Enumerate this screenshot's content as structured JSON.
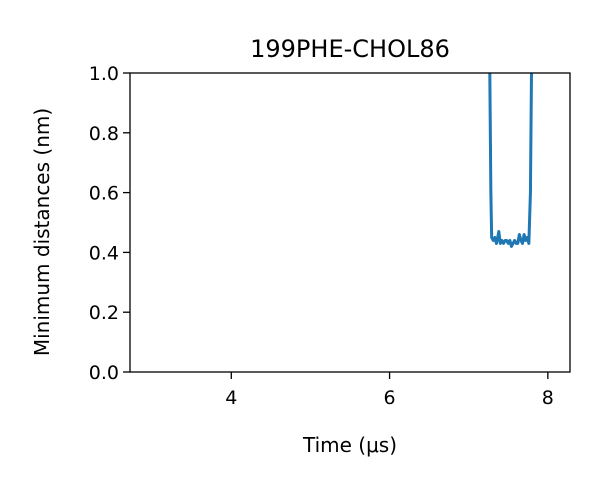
{
  "chart_data": {
    "type": "line",
    "title": "199PHE-CHOL86",
    "xlabel": "Time (μs)",
    "ylabel": "Minimum distances (nm)",
    "xlim": [
      2.72,
      8.28
    ],
    "ylim": [
      0.0,
      1.0
    ],
    "xticks": [
      4,
      6,
      8
    ],
    "yticks": [
      0.0,
      0.2,
      0.4,
      0.6,
      0.8,
      1.0
    ],
    "xtick_labels": [
      "4",
      "6",
      "8"
    ],
    "ytick_labels": [
      "0.0",
      "0.2",
      "0.4",
      "0.6",
      "0.8",
      "1.0"
    ],
    "grid": false,
    "legend": false,
    "series": [
      {
        "color": "#1f77b4",
        "x": [
          7.26,
          7.28,
          7.29,
          7.31,
          7.33,
          7.35,
          7.36,
          7.38,
          7.4,
          7.42,
          7.44,
          7.46,
          7.48,
          7.5,
          7.52,
          7.54,
          7.56,
          7.58,
          7.6,
          7.62,
          7.64,
          7.66,
          7.68,
          7.7,
          7.72,
          7.74,
          7.76,
          7.78,
          7.8
        ],
        "y": [
          1.2,
          0.6,
          0.45,
          0.44,
          0.45,
          0.43,
          0.44,
          0.47,
          0.43,
          0.44,
          0.43,
          0.44,
          0.44,
          0.43,
          0.44,
          0.42,
          0.43,
          0.44,
          0.43,
          0.43,
          0.46,
          0.44,
          0.43,
          0.46,
          0.44,
          0.45,
          0.43,
          0.6,
          1.2
        ]
      }
    ]
  }
}
